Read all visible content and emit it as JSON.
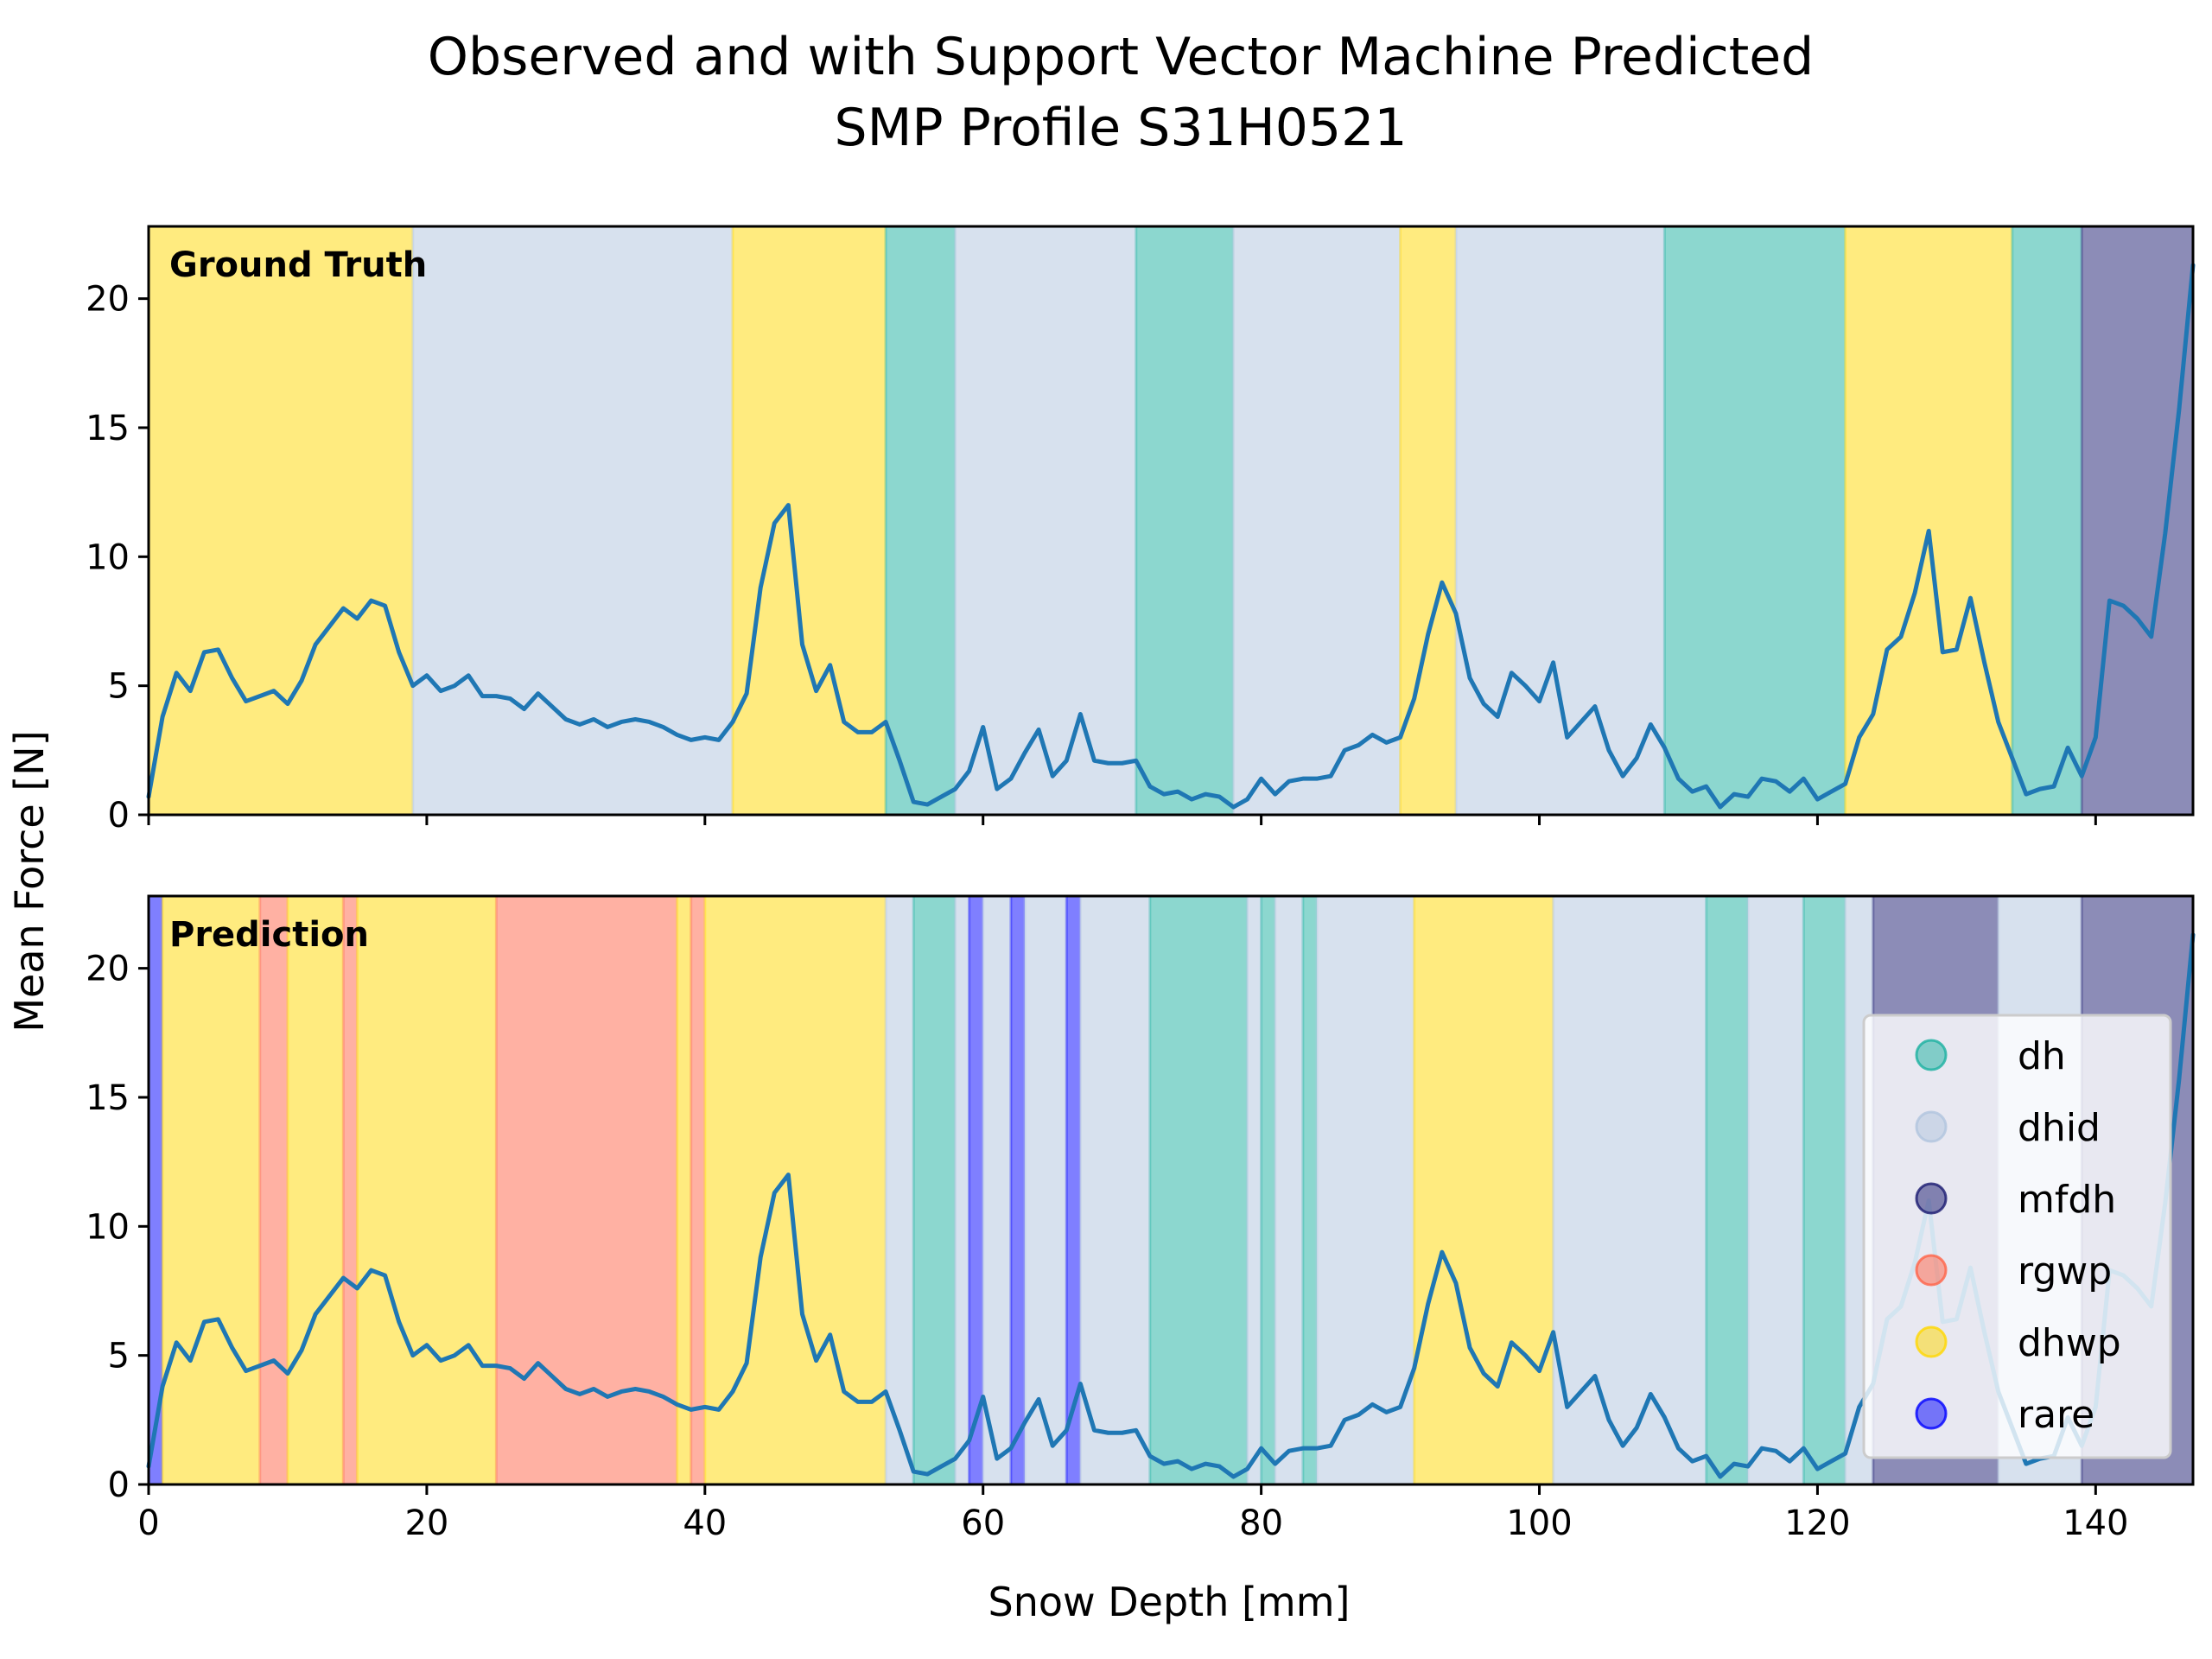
{
  "chart_data": {
    "type": "line",
    "title": "Observed and with Support Vector Machine Predicted\nSMP Profile S31H0521",
    "xlabel": "Snow Depth [mm]",
    "ylabel": "Mean Force [N]",
    "xlim": [
      0,
      147
    ],
    "ylim": [
      0,
      22.8
    ],
    "xticks": [
      0,
      20,
      40,
      60,
      80,
      100,
      120,
      140
    ],
    "yticks": [
      0,
      5,
      10,
      15,
      20
    ],
    "grid": false,
    "legend_position": "right",
    "classes": [
      {
        "name": "dh",
        "color": "#1ab0a0",
        "alpha": 0.5
      },
      {
        "name": "dhid",
        "color": "#b0c4de",
        "alpha": 0.5
      },
      {
        "name": "mfdh",
        "color": "#191970",
        "alpha": 0.5
      },
      {
        "name": "rgwp",
        "color": "#ff6347",
        "alpha": 0.5
      },
      {
        "name": "dhwp",
        "color": "#ffd700",
        "alpha": 0.5
      },
      {
        "name": "rare",
        "color": "#0000ff",
        "alpha": 0.5
      }
    ],
    "line_color": "#1f77b4",
    "series": [
      {
        "x": [
          0,
          1,
          2,
          3,
          4,
          5,
          6,
          7,
          8,
          9,
          10,
          11,
          12,
          13,
          14,
          15,
          16,
          17,
          18,
          19,
          20,
          21,
          22,
          23,
          24,
          25,
          26,
          27,
          28,
          29,
          30,
          31,
          32,
          33,
          34,
          35,
          36,
          37,
          38,
          39,
          40,
          41,
          42,
          43,
          44,
          45,
          46,
          47,
          48,
          49,
          50,
          51,
          52,
          53,
          54,
          55,
          56,
          57,
          58,
          59,
          60,
          61,
          62,
          63,
          64,
          65,
          66,
          67,
          68,
          69,
          70,
          71,
          72,
          73,
          74,
          75,
          76,
          77,
          78,
          79,
          80,
          81,
          82,
          83,
          84,
          85,
          86,
          87,
          88,
          89,
          90,
          91,
          92,
          93,
          94,
          95,
          96,
          97,
          98,
          99,
          100,
          101,
          102,
          103,
          104,
          105,
          106,
          107,
          108,
          109,
          110,
          111,
          112,
          113,
          114,
          115,
          116,
          117,
          118,
          119,
          120,
          121,
          122,
          123,
          124,
          125,
          126,
          127,
          128,
          129,
          130,
          131,
          132,
          133,
          134,
          135,
          136,
          137,
          138,
          139,
          140,
          141,
          142,
          143,
          144,
          145,
          146,
          147
        ],
        "y": [
          0.7,
          3.8,
          5.5,
          4.8,
          6.3,
          6.4,
          5.3,
          4.4,
          4.6,
          4.8,
          4.3,
          5.2,
          6.6,
          7.3,
          8.0,
          7.6,
          8.3,
          8.1,
          6.3,
          5.0,
          5.4,
          4.8,
          5.0,
          5.4,
          4.6,
          4.6,
          4.5,
          4.1,
          4.7,
          4.2,
          3.7,
          3.5,
          3.7,
          3.4,
          3.6,
          3.7,
          3.6,
          3.4,
          3.1,
          2.9,
          3.0,
          2.9,
          3.6,
          4.7,
          8.8,
          11.3,
          12.0,
          6.6,
          4.8,
          5.8,
          3.6,
          3.2,
          3.2,
          3.6,
          2.1,
          0.5,
          0.4,
          0.7,
          1.0,
          1.7,
          3.4,
          1.0,
          1.4,
          2.4,
          3.3,
          1.5,
          2.1,
          3.9,
          2.1,
          2.0,
          2.0,
          2.1,
          1.1,
          0.8,
          0.9,
          0.6,
          0.8,
          0.7,
          0.3,
          0.6,
          1.4,
          0.8,
          1.3,
          1.4,
          1.4,
          1.5,
          2.5,
          2.7,
          3.1,
          2.8,
          3.0,
          4.5,
          7.0,
          9.0,
          7.8,
          5.3,
          4.3,
          3.8,
          5.5,
          5.0,
          4.4,
          5.9,
          3.0,
          3.6,
          4.2,
          2.5,
          1.5,
          2.2,
          3.5,
          2.6,
          1.4,
          0.9,
          1.1,
          0.3,
          0.8,
          0.7,
          1.4,
          1.3,
          0.9,
          1.4,
          0.6,
          0.9,
          1.2,
          3.0,
          3.9,
          6.4,
          6.9,
          8.6,
          11.0,
          6.3,
          6.4,
          8.4,
          5.9,
          3.6,
          2.2,
          0.8,
          1.0,
          1.1,
          2.6,
          1.5,
          3.0,
          8.3,
          8.1,
          7.6,
          6.9,
          10.9,
          15.7,
          21.3
        ]
      }
    ],
    "panels": [
      {
        "label": "Ground Truth",
        "segments": [
          {
            "start": 0,
            "end": 19,
            "cls": "dhwp"
          },
          {
            "start": 19,
            "end": 42,
            "cls": "dhid"
          },
          {
            "start": 42,
            "end": 53,
            "cls": "dhwp"
          },
          {
            "start": 53,
            "end": 58,
            "cls": "dh"
          },
          {
            "start": 58,
            "end": 71,
            "cls": "dhid"
          },
          {
            "start": 71,
            "end": 78,
            "cls": "dh"
          },
          {
            "start": 78,
            "end": 90,
            "cls": "dhid"
          },
          {
            "start": 90,
            "end": 94,
            "cls": "dhwp"
          },
          {
            "start": 94,
            "end": 109,
            "cls": "dhid"
          },
          {
            "start": 109,
            "end": 122,
            "cls": "dh"
          },
          {
            "start": 122,
            "end": 134,
            "cls": "dhwp"
          },
          {
            "start": 134,
            "end": 139,
            "cls": "dh"
          },
          {
            "start": 139,
            "end": 147,
            "cls": "mfdh"
          }
        ]
      },
      {
        "label": "Prediction",
        "segments": [
          {
            "start": 0,
            "end": 1,
            "cls": "rare"
          },
          {
            "start": 1,
            "end": 8,
            "cls": "dhwp"
          },
          {
            "start": 8,
            "end": 10,
            "cls": "rgwp"
          },
          {
            "start": 10,
            "end": 14,
            "cls": "dhwp"
          },
          {
            "start": 14,
            "end": 15,
            "cls": "rgwp"
          },
          {
            "start": 15,
            "end": 25,
            "cls": "dhwp"
          },
          {
            "start": 25,
            "end": 38,
            "cls": "rgwp"
          },
          {
            "start": 38,
            "end": 39,
            "cls": "dhwp"
          },
          {
            "start": 39,
            "end": 40,
            "cls": "rgwp"
          },
          {
            "start": 40,
            "end": 53,
            "cls": "dhwp"
          },
          {
            "start": 53,
            "end": 55,
            "cls": "dhid"
          },
          {
            "start": 55,
            "end": 58,
            "cls": "dh"
          },
          {
            "start": 58,
            "end": 59,
            "cls": "dhid"
          },
          {
            "start": 59,
            "end": 60,
            "cls": "rare"
          },
          {
            "start": 60,
            "end": 62,
            "cls": "dhid"
          },
          {
            "start": 62,
            "end": 63,
            "cls": "rare"
          },
          {
            "start": 63,
            "end": 66,
            "cls": "dhid"
          },
          {
            "start": 66,
            "end": 67,
            "cls": "rare"
          },
          {
            "start": 67,
            "end": 72,
            "cls": "dhid"
          },
          {
            "start": 72,
            "end": 79,
            "cls": "dh"
          },
          {
            "start": 79,
            "end": 80,
            "cls": "dhid"
          },
          {
            "start": 80,
            "end": 81,
            "cls": "dh"
          },
          {
            "start": 81,
            "end": 83,
            "cls": "dhid"
          },
          {
            "start": 83,
            "end": 84,
            "cls": "dh"
          },
          {
            "start": 84,
            "end": 91,
            "cls": "dhid"
          },
          {
            "start": 91,
            "end": 101,
            "cls": "dhwp"
          },
          {
            "start": 101,
            "end": 112,
            "cls": "dhid"
          },
          {
            "start": 112,
            "end": 115,
            "cls": "dh"
          },
          {
            "start": 115,
            "end": 119,
            "cls": "dhid"
          },
          {
            "start": 119,
            "end": 122,
            "cls": "dh"
          },
          {
            "start": 122,
            "end": 124,
            "cls": "dhid"
          },
          {
            "start": 124,
            "end": 133,
            "cls": "mfdh"
          },
          {
            "start": 133,
            "end": 139,
            "cls": "dhid"
          },
          {
            "start": 139,
            "end": 147,
            "cls": "mfdh"
          }
        ]
      }
    ]
  }
}
